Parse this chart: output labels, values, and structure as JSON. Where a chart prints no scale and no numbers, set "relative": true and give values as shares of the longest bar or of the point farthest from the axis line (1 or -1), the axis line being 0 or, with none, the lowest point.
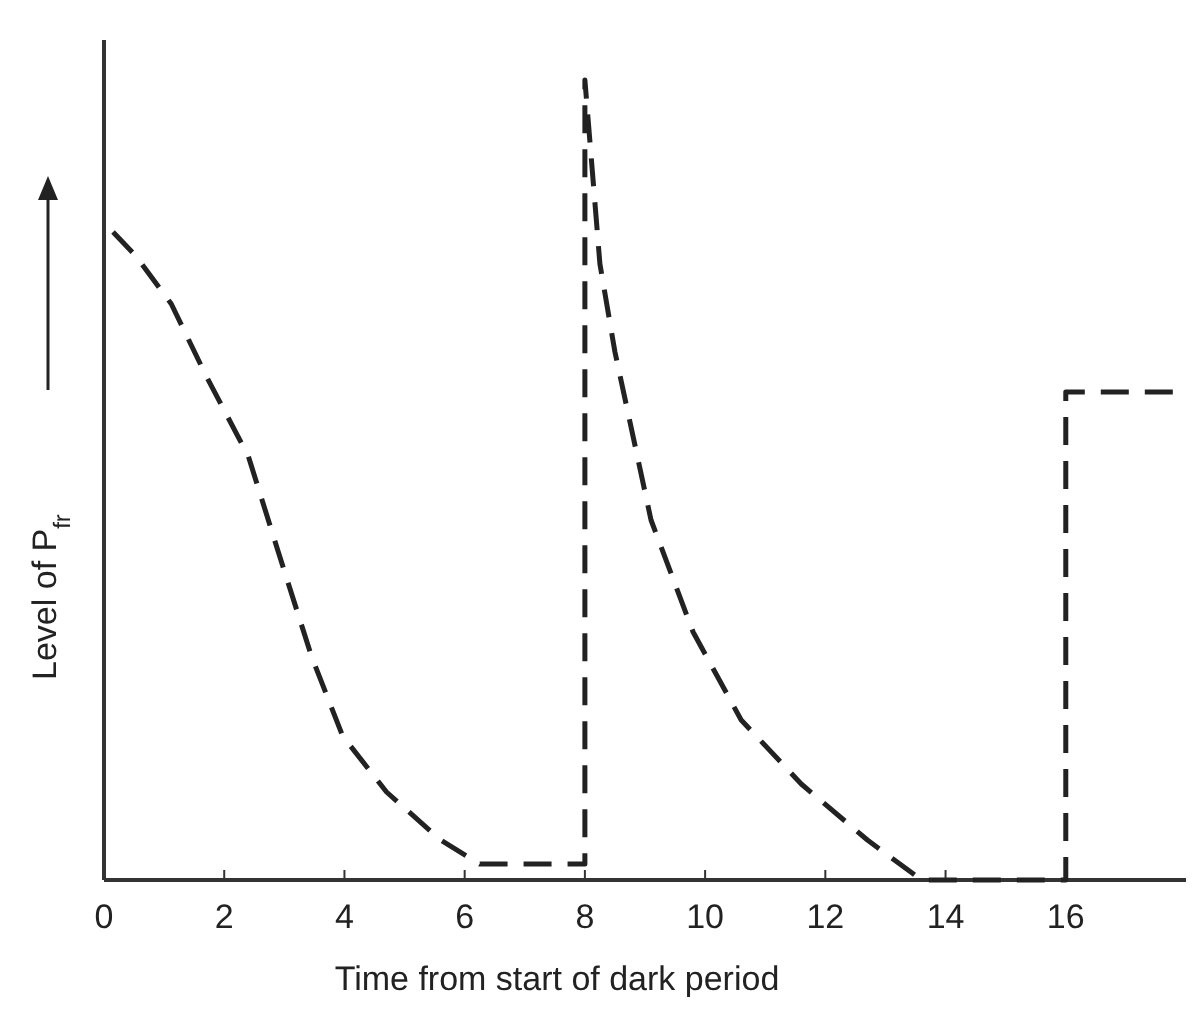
{
  "chart_data": {
    "type": "line",
    "relative": true,
    "xlabel": "Time from start of dark period",
    "ylabel": "Level of P$_{fr}$",
    "xlim": [
      0,
      18
    ],
    "xticks": [
      0,
      2,
      4,
      6,
      8,
      10,
      12,
      14,
      16
    ],
    "line_style": "dashed",
    "grid": false,
    "series": [
      {
        "color": "#222222",
        "x": [
          0.15,
          0.53,
          1.12,
          1.7,
          2.4,
          2.9,
          3.45,
          3.97,
          4.7,
          5.6,
          6.25,
          8,
          8,
          8.25,
          8.5,
          9.1,
          9.8,
          10.6,
          11.6,
          12.7,
          13.6,
          16,
          16,
          18
        ],
        "values": [
          0.81,
          0.78,
          0.72,
          0.63,
          0.53,
          0.41,
          0.28,
          0.18,
          0.11,
          0.05,
          0.02,
          0.02,
          1.0,
          0.77,
          0.66,
          0.45,
          0.31,
          0.2,
          0.12,
          0.05,
          0,
          0,
          0.61,
          0.61
        ]
      }
    ]
  }
}
